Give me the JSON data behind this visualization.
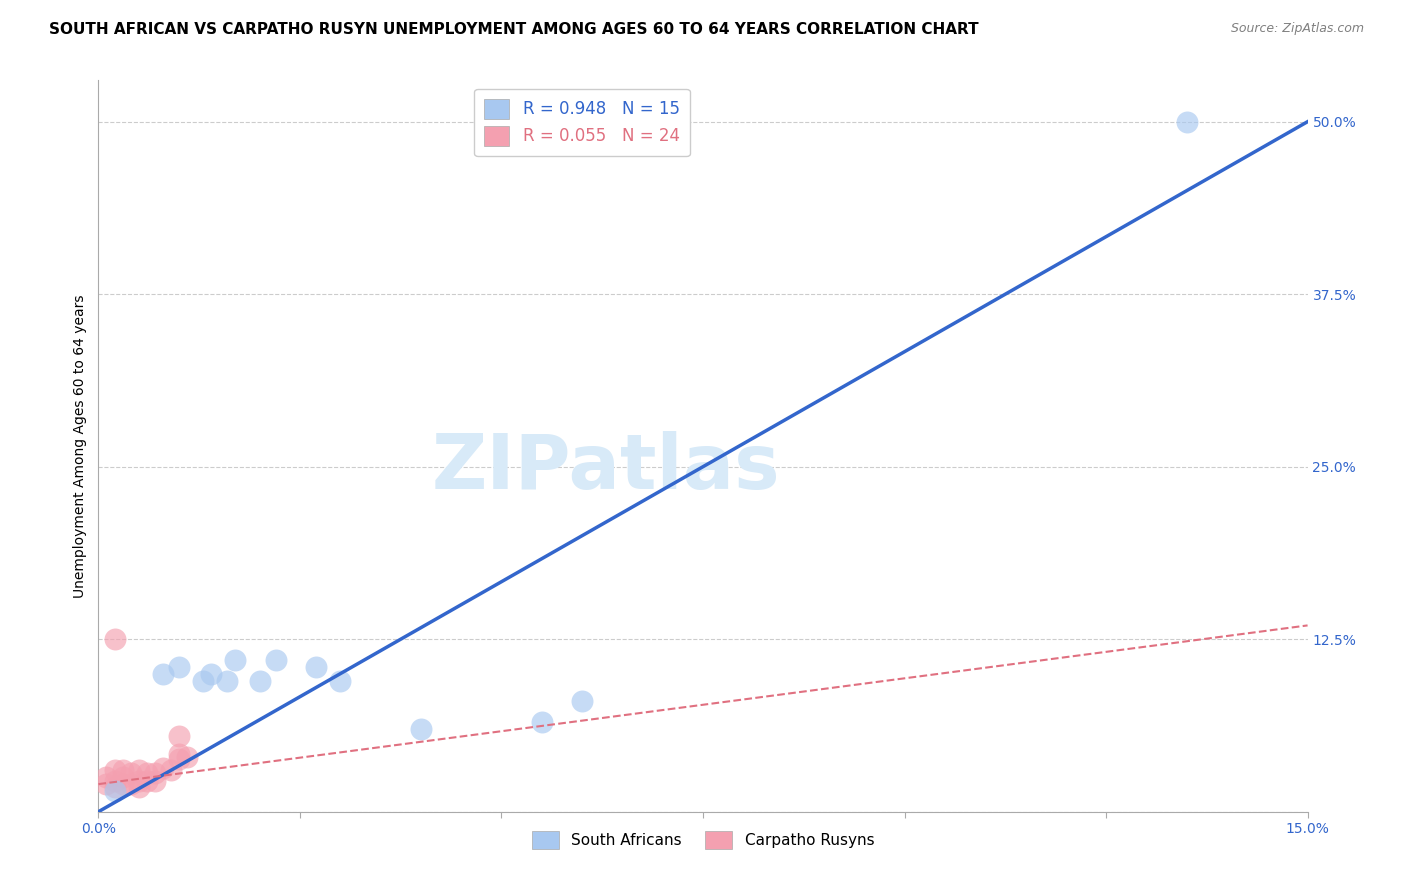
{
  "title": "SOUTH AFRICAN VS CARPATHO RUSYN UNEMPLOYMENT AMONG AGES 60 TO 64 YEARS CORRELATION CHART",
  "source": "Source: ZipAtlas.com",
  "ylabel": "Unemployment Among Ages 60 to 64 years",
  "xlim": [
    0.0,
    0.15
  ],
  "ylim": [
    0.0,
    0.53
  ],
  "xticks": [
    0.0,
    0.025,
    0.05,
    0.075,
    0.1,
    0.125,
    0.15
  ],
  "xticklabels": [
    "0.0%",
    "",
    "",
    "",
    "",
    "",
    "15.0%"
  ],
  "ytick_positions": [
    0.0,
    0.125,
    0.25,
    0.375,
    0.5
  ],
  "ytick_labels": [
    "",
    "12.5%",
    "25.0%",
    "37.5%",
    "50.0%"
  ],
  "south_african_R": 0.948,
  "south_african_N": 15,
  "carpatho_rusyn_R": 0.055,
  "carpatho_rusyn_N": 24,
  "south_african_color": "#A8C8F0",
  "carpatho_rusyn_color": "#F4A0B0",
  "sa_line_color": "#3366CC",
  "cr_line_color": "#E07080",
  "sa_scatter_x": [
    0.002,
    0.008,
    0.01,
    0.013,
    0.014,
    0.016,
    0.017,
    0.02,
    0.022,
    0.027,
    0.03,
    0.04,
    0.055,
    0.06,
    0.135
  ],
  "sa_scatter_y": [
    0.015,
    0.1,
    0.105,
    0.095,
    0.1,
    0.095,
    0.11,
    0.095,
    0.11,
    0.105,
    0.095,
    0.06,
    0.065,
    0.08,
    0.5
  ],
  "cr_scatter_x": [
    0.001,
    0.001,
    0.002,
    0.002,
    0.002,
    0.003,
    0.003,
    0.003,
    0.004,
    0.004,
    0.005,
    0.005,
    0.005,
    0.006,
    0.006,
    0.007,
    0.007,
    0.008,
    0.009,
    0.01,
    0.01,
    0.01,
    0.011,
    0.002
  ],
  "cr_scatter_y": [
    0.02,
    0.025,
    0.018,
    0.022,
    0.03,
    0.02,
    0.025,
    0.03,
    0.02,
    0.028,
    0.018,
    0.022,
    0.03,
    0.022,
    0.028,
    0.022,
    0.028,
    0.032,
    0.03,
    0.038,
    0.042,
    0.055,
    0.04,
    0.125
  ],
  "background_color": "#FFFFFF",
  "grid_color": "#CCCCCC",
  "watermark_text": "ZIPatlas",
  "watermark_color": "#D8EAF8",
  "sa_line_x": [
    0.0,
    0.15
  ],
  "sa_line_y": [
    0.0,
    0.5
  ],
  "cr_line_x": [
    0.0,
    0.15
  ],
  "cr_line_y": [
    0.02,
    0.135
  ],
  "title_fontsize": 11,
  "label_fontsize": 10,
  "tick_fontsize": 10
}
